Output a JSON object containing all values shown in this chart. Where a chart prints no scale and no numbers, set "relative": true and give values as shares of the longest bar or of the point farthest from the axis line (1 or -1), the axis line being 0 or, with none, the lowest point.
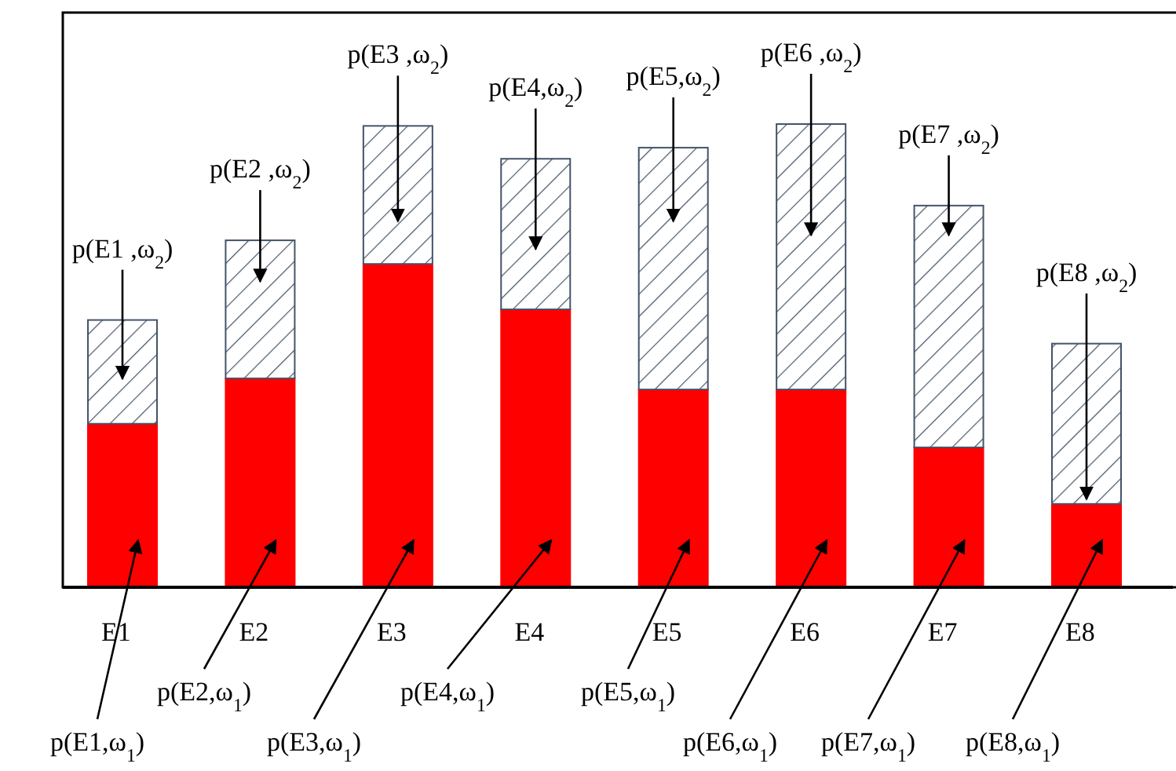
{
  "chart_data": {
    "type": "bar",
    "stacked": true,
    "relative": true,
    "categories": [
      "E1",
      "E2",
      "E3",
      "E4",
      "E5",
      "E6",
      "E7",
      "E8"
    ],
    "series": [
      {
        "color": "#ff0000",
        "values": [
          0.353,
          0.451,
          0.698,
          0.6,
          0.427,
          0.427,
          0.302,
          0.18
        ]
      },
      {
        "color": "#44546a",
        "values": [
          0.224,
          0.298,
          0.298,
          0.325,
          0.522,
          0.573,
          0.522,
          0.346
        ]
      }
    ],
    "annotations": [
      "p(E1 ,ω$_{2}$)",
      "p(E2 ,ω$_{2}$)",
      "p(E3 ,ω$_{2}$)",
      "p(E4,ω$_{2}$)",
      "p(E5,ω$_{2}$)",
      "p(E6 ,ω$_{2}$)",
      "p(E7 ,ω$_{2}$)",
      "p(E8 ,ω$_{2}$)",
      "p(E1,ω$_{1}$)",
      "p(E2,ω$_{1}$)",
      "p(E3,ω$_{1}$)",
      "p(E4,ω$_{1}$)",
      "p(E5,ω$_{1}$)",
      "p(E6,ω$_{1}$)",
      "p(E7,ω$_{1}$)",
      "p(E8,ω$_{1}$)"
    ]
  }
}
